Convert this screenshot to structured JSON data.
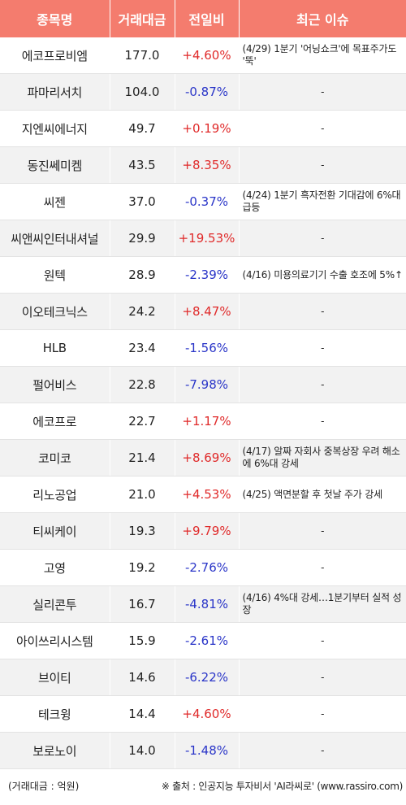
{
  "header": {
    "col_name": "종목명",
    "col_volume": "거래대금",
    "col_change": "전일비",
    "col_issue": "최근 이슈"
  },
  "rows": [
    {
      "name": "에코프로비엠",
      "volume": "177.0",
      "change": "+4.60%",
      "direction": "up",
      "issue": "(4/29) 1분기 '어닝쇼크'에 목표주가도 '뚝'"
    },
    {
      "name": "파마리서치",
      "volume": "104.0",
      "change": "-0.87%",
      "direction": "down",
      "issue": "-"
    },
    {
      "name": "지엔씨에너지",
      "volume": "49.7",
      "change": "+0.19%",
      "direction": "up",
      "issue": "-"
    },
    {
      "name": "동진쎄미켐",
      "volume": "43.5",
      "change": "+8.35%",
      "direction": "up",
      "issue": "-"
    },
    {
      "name": "씨젠",
      "volume": "37.0",
      "change": "-0.37%",
      "direction": "down",
      "issue": "(4/24) 1분기 흑자전환 기대감에 6%대 급등"
    },
    {
      "name": "씨앤씨인터내셔널",
      "volume": "29.9",
      "change": "+19.53%",
      "direction": "up",
      "issue": "-"
    },
    {
      "name": "원텍",
      "volume": "28.9",
      "change": "-2.39%",
      "direction": "down",
      "issue": "(4/16) 미용의료기기 수출 호조에 5%↑"
    },
    {
      "name": "이오테크닉스",
      "volume": "24.2",
      "change": "+8.47%",
      "direction": "up",
      "issue": "-"
    },
    {
      "name": "HLB",
      "volume": "23.4",
      "change": "-1.56%",
      "direction": "down",
      "issue": "-"
    },
    {
      "name": "펄어비스",
      "volume": "22.8",
      "change": "-7.98%",
      "direction": "down",
      "issue": "-"
    },
    {
      "name": "에코프로",
      "volume": "22.7",
      "change": "+1.17%",
      "direction": "up",
      "issue": "-"
    },
    {
      "name": "코미코",
      "volume": "21.4",
      "change": "+8.69%",
      "direction": "up",
      "issue": "(4/17) 알짜 자회사 중복상장 우려 해소에 6%대 강세"
    },
    {
      "name": "리노공업",
      "volume": "21.0",
      "change": "+4.53%",
      "direction": "up",
      "issue": "(4/25) 액면분할 후 첫날 주가 강세"
    },
    {
      "name": "티씨케이",
      "volume": "19.3",
      "change": "+9.79%",
      "direction": "up",
      "issue": "-"
    },
    {
      "name": "고영",
      "volume": "19.2",
      "change": "-2.76%",
      "direction": "down",
      "issue": "-"
    },
    {
      "name": "실리콘투",
      "volume": "16.7",
      "change": "-4.81%",
      "direction": "down",
      "issue": "(4/16) 4%대 강세…1분기부터 실적 성장"
    },
    {
      "name": "아이쓰리시스템",
      "volume": "15.9",
      "change": "-2.61%",
      "direction": "down",
      "issue": "-"
    },
    {
      "name": "브이티",
      "volume": "14.6",
      "change": "-6.22%",
      "direction": "down",
      "issue": "-"
    },
    {
      "name": "테크윙",
      "volume": "14.4",
      "change": "+4.60%",
      "direction": "up",
      "issue": "-"
    },
    {
      "name": "보로노이",
      "volume": "14.0",
      "change": "-1.48%",
      "direction": "down",
      "issue": "-"
    }
  ],
  "footer": {
    "unit_note": "(거래대금 : 억원)",
    "source_note": "※ 출처 : 인공지능 투자비서 'AI라씨로' (www.rassiro.com)"
  },
  "colors": {
    "header_bg": "#f47c6e",
    "up": "#e02a2a",
    "down": "#2a35c8",
    "row_alt": "#f2f2f2"
  }
}
